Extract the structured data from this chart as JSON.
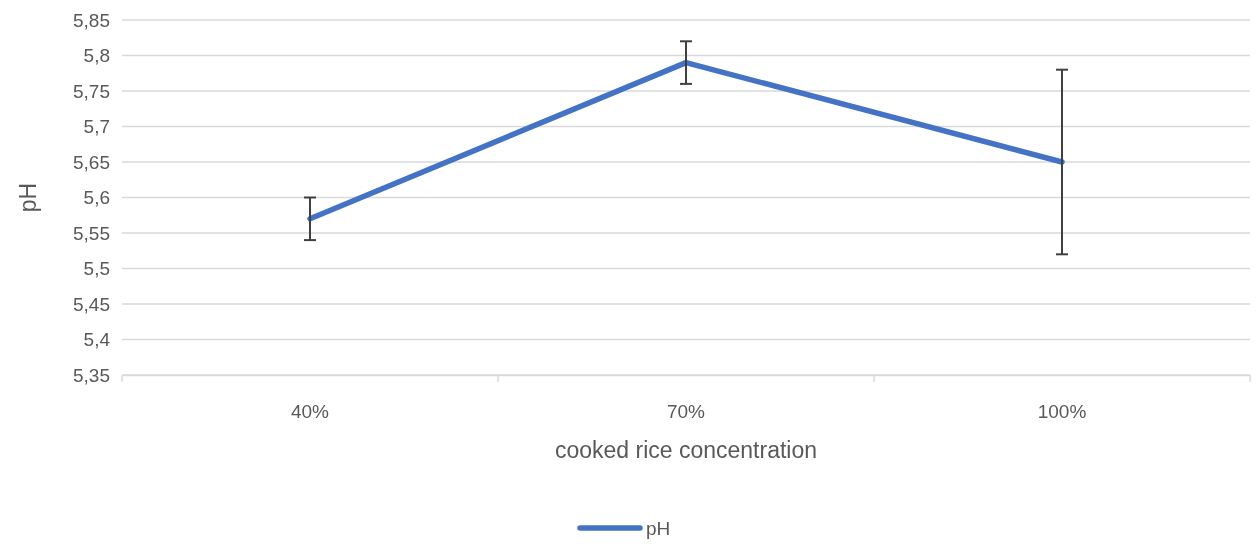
{
  "chart_data": {
    "type": "line",
    "xlabel": "cooked rice concentration",
    "ylabel": "pH",
    "categories": [
      "40%",
      "70%",
      "100%"
    ],
    "series": [
      {
        "name": "pH",
        "color": "#4472c4",
        "values": [
          5.57,
          5.79,
          5.65
        ],
        "errors": [
          0.03,
          0.03,
          0.13
        ]
      }
    ],
    "ylim": [
      5.35,
      5.85
    ],
    "yticks": [
      {
        "value": 5.35,
        "label": "5,35"
      },
      {
        "value": 5.4,
        "label": "5,4"
      },
      {
        "value": 5.45,
        "label": "5,45"
      },
      {
        "value": 5.5,
        "label": "5,5"
      },
      {
        "value": 5.55,
        "label": "5,55"
      },
      {
        "value": 5.6,
        "label": "5,6"
      },
      {
        "value": 5.65,
        "label": "5,65"
      },
      {
        "value": 5.7,
        "label": "5,7"
      },
      {
        "value": 5.75,
        "label": "5,75"
      },
      {
        "value": 5.8,
        "label": "5,8"
      },
      {
        "value": 5.85,
        "label": "5,85"
      }
    ],
    "grid": "y",
    "legend": "bottom",
    "marker": "none",
    "line_style": "solid"
  }
}
